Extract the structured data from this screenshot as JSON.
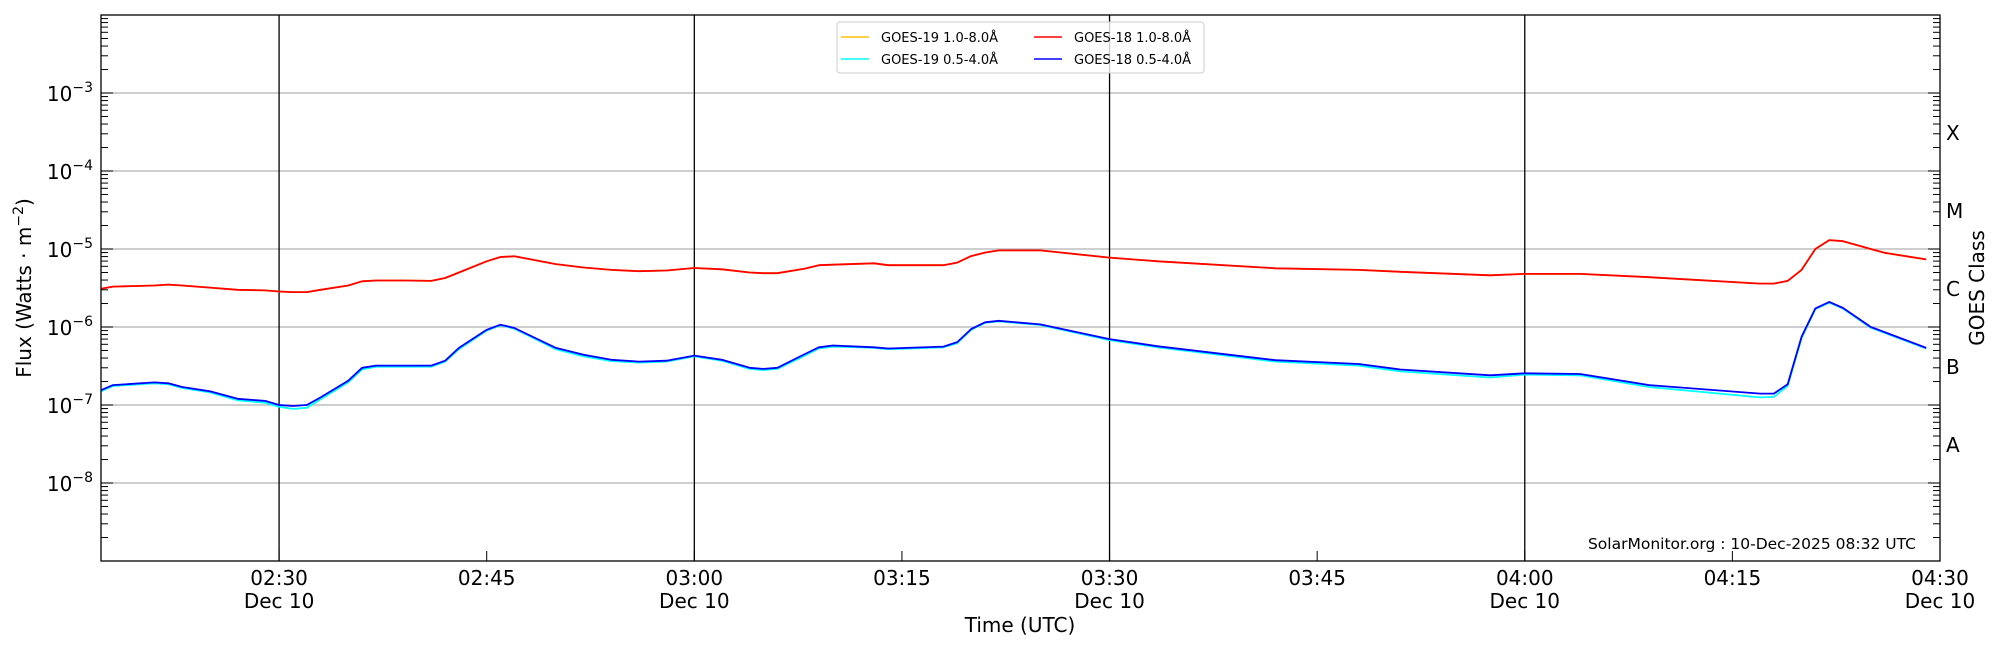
{
  "chart_data": {
    "type": "line",
    "xlabel": "Time (UTC)",
    "ylabel": "Flux (Watts · m",
    "ylabel_sup": "−2",
    "ylabel_end": ")",
    "right_label": "GOES Class",
    "yscale": "log",
    "ylim": [
      1e-09,
      0.01
    ],
    "xlim": [
      "02:17:08",
      "04:30:00"
    ],
    "grid": "horizontal at decades",
    "legend_position": "top-center",
    "y_ticks": [
      {
        "value": 1e-08,
        "base": "10",
        "exp": "−8"
      },
      {
        "value": 1e-07,
        "base": "10",
        "exp": "−7"
      },
      {
        "value": 1e-06,
        "base": "10",
        "exp": "−6"
      },
      {
        "value": 1e-05,
        "base": "10",
        "exp": "−5"
      },
      {
        "value": 0.0001,
        "base": "10",
        "exp": "−4"
      },
      {
        "value": 0.001,
        "base": "10",
        "exp": "−3"
      }
    ],
    "class_labels": [
      {
        "label": "A",
        "value": 3.16e-08
      },
      {
        "label": "B",
        "value": 3.16e-07
      },
      {
        "label": "C",
        "value": 3.16e-06
      },
      {
        "label": "M",
        "value": 3.16e-05
      },
      {
        "label": "X",
        "value": 0.000316
      }
    ],
    "x_ticks": [
      {
        "time": "02:30:00",
        "label": "02:30",
        "date": "Dec 10"
      },
      {
        "time": "02:45:00",
        "label": "02:45",
        "date": ""
      },
      {
        "time": "03:00:00",
        "label": "03:00",
        "date": "Dec 10"
      },
      {
        "time": "03:15:00",
        "label": "03:15",
        "date": ""
      },
      {
        "time": "03:30:00",
        "label": "03:30",
        "date": "Dec 10"
      },
      {
        "time": "03:45:00",
        "label": "03:45",
        "date": ""
      },
      {
        "time": "04:00:00",
        "label": "04:00",
        "date": "Dec 10"
      },
      {
        "time": "04:15:00",
        "label": "04:15",
        "date": ""
      },
      {
        "time": "04:30:00",
        "label": "04:30",
        "date": "Dec 10"
      }
    ],
    "vertical_lines": [
      "02:30:00",
      "03:00:00",
      "03:30:00",
      "04:00:00"
    ],
    "annotation": "SolarMonitor.org : 10-Dec-2025 08:32 UTC",
    "x": [
      "02:17:08",
      "02:18:00",
      "02:21:00",
      "02:22:00",
      "02:23:00",
      "02:25:00",
      "02:27:00",
      "02:29:00",
      "02:30:00",
      "02:31:00",
      "02:32:00",
      "02:33:00",
      "02:35:00",
      "02:36:00",
      "02:37:00",
      "02:39:00",
      "02:41:00",
      "02:42:00",
      "02:43:00",
      "02:45:00",
      "02:46:00",
      "02:47:00",
      "02:50:00",
      "02:52:00",
      "02:54:00",
      "02:56:00",
      "02:58:00",
      "03:00:00",
      "03:02:00",
      "03:04:00",
      "03:05:00",
      "03:06:00",
      "03:08:00",
      "03:09:00",
      "03:10:00",
      "03:13:00",
      "03:14:00",
      "03:18:00",
      "03:19:00",
      "03:20:00",
      "03:21:00",
      "03:22:00",
      "03:25:00",
      "03:30:00",
      "03:33:30",
      "03:42:00",
      "03:48:00",
      "03:51:00",
      "03:57:30",
      "04:00:00",
      "04:04:00",
      "04:09:00",
      "04:17:00",
      "04:18:00",
      "04:19:00",
      "04:20:00",
      "04:21:00",
      "04:22:00",
      "04:23:00",
      "04:25:00",
      "04:26:00",
      "04:29:00"
    ],
    "series": [
      {
        "name": "GOES-19 1.0-8.0Å",
        "color": "#ffc000",
        "values": [
          3.1e-06,
          3.3e-06,
          3.4e-06,
          3.5e-06,
          3.4e-06,
          3.2e-06,
          3e-06,
          2.95e-06,
          2.85e-06,
          2.8e-06,
          2.8e-06,
          3e-06,
          3.4e-06,
          3.85e-06,
          3.95e-06,
          3.95e-06,
          3.9e-06,
          4.25e-06,
          5e-06,
          6.95e-06,
          7.9e-06,
          8.05e-06,
          6.4e-06,
          5.8e-06,
          5.4e-06,
          5.2e-06,
          5.3e-06,
          5.7e-06,
          5.5e-06,
          5e-06,
          4.9e-06,
          4.9e-06,
          5.6e-06,
          6.2e-06,
          6.3e-06,
          6.55e-06,
          6.2e-06,
          6.2e-06,
          6.7e-06,
          8.1e-06,
          9e-06,
          9.6e-06,
          9.6e-06,
          7.75e-06,
          6.95e-06,
          5.65e-06,
          5.4e-06,
          5.1e-06,
          4.6e-06,
          4.8e-06,
          4.8e-06,
          4.35e-06,
          3.6e-06,
          3.6e-06,
          3.9e-06,
          5.4e-06,
          1e-05,
          1.3e-05,
          1.26e-05,
          1e-05,
          8.95e-06,
          7.35e-06
        ]
      },
      {
        "name": "GOES-18 1.0-8.0Å",
        "color": "#ff0000",
        "values": [
          3.1e-06,
          3.3e-06,
          3.4e-06,
          3.5e-06,
          3.4e-06,
          3.2e-06,
          3e-06,
          2.95e-06,
          2.85e-06,
          2.8e-06,
          2.8e-06,
          3e-06,
          3.4e-06,
          3.85e-06,
          3.95e-06,
          3.95e-06,
          3.9e-06,
          4.25e-06,
          5e-06,
          6.95e-06,
          7.9e-06,
          8.05e-06,
          6.4e-06,
          5.8e-06,
          5.4e-06,
          5.2e-06,
          5.3e-06,
          5.7e-06,
          5.5e-06,
          5e-06,
          4.9e-06,
          4.9e-06,
          5.6e-06,
          6.2e-06,
          6.3e-06,
          6.55e-06,
          6.2e-06,
          6.2e-06,
          6.7e-06,
          8.1e-06,
          9e-06,
          9.6e-06,
          9.6e-06,
          7.75e-06,
          6.95e-06,
          5.65e-06,
          5.4e-06,
          5.1e-06,
          4.6e-06,
          4.8e-06,
          4.8e-06,
          4.35e-06,
          3.6e-06,
          3.6e-06,
          3.9e-06,
          5.4e-06,
          1e-05,
          1.3e-05,
          1.26e-05,
          1e-05,
          8.95e-06,
          7.35e-06
        ]
      },
      {
        "name": "GOES-19 0.5-4.0Å",
        "color": "#00ffff",
        "values": [
          1.5e-07,
          1.75e-07,
          1.9e-07,
          1.85e-07,
          1.65e-07,
          1.45e-07,
          1.15e-07,
          1.07e-07,
          9.5e-08,
          8.9e-08,
          9.2e-08,
          1.18e-07,
          1.95e-07,
          2.85e-07,
          3.1e-07,
          3.1e-07,
          3.1e-07,
          3.6e-07,
          5.2e-07,
          9e-07,
          1.05e-06,
          9.5e-07,
          5.2e-07,
          4.2e-07,
          3.65e-07,
          3.5e-07,
          3.6e-07,
          4.2e-07,
          3.7e-07,
          2.9e-07,
          2.8e-07,
          2.9e-07,
          4.3e-07,
          5.3e-07,
          5.6e-07,
          5.4e-07,
          5.2e-07,
          5.5e-07,
          6.2e-07,
          9.2e-07,
          1.13e-06,
          1.18e-06,
          1.06e-06,
          6.8e-07,
          5.5e-07,
          3.6e-07,
          3.2e-07,
          2.7e-07,
          2.25e-07,
          2.45e-07,
          2.4e-07,
          1.7e-07,
          1.25e-07,
          1.27e-07,
          1.75e-07,
          7.2e-07,
          1.7e-06,
          2.05e-06,
          1.72e-06,
          9.8e-07,
          8.4e-07,
          5.3e-07
        ]
      },
      {
        "name": "GOES-18 0.5-4.0Å",
        "color": "#0000ff",
        "values": [
          1.55e-07,
          1.8e-07,
          1.95e-07,
          1.9e-07,
          1.7e-07,
          1.5e-07,
          1.2e-07,
          1.13e-07,
          1e-07,
          9.7e-08,
          1e-07,
          1.25e-07,
          2.05e-07,
          3e-07,
          3.2e-07,
          3.2e-07,
          3.2e-07,
          3.7e-07,
          5.4e-07,
          9.2e-07,
          1.07e-06,
          9.7e-07,
          5.4e-07,
          4.4e-07,
          3.8e-07,
          3.6e-07,
          3.7e-07,
          4.3e-07,
          3.8e-07,
          3e-07,
          2.9e-07,
          3e-07,
          4.5e-07,
          5.5e-07,
          5.8e-07,
          5.5e-07,
          5.3e-07,
          5.6e-07,
          6.4e-07,
          9.4e-07,
          1.15e-06,
          1.2e-06,
          1.08e-06,
          7e-07,
          5.65e-07,
          3.75e-07,
          3.35e-07,
          2.85e-07,
          2.4e-07,
          2.55e-07,
          2.5e-07,
          1.8e-07,
          1.4e-07,
          1.4e-07,
          1.85e-07,
          7.5e-07,
          1.73e-06,
          2.1e-06,
          1.75e-06,
          1e-06,
          8.6e-07,
          5.4e-07
        ]
      }
    ],
    "legend_order": [
      0,
      2,
      1,
      3
    ]
  }
}
